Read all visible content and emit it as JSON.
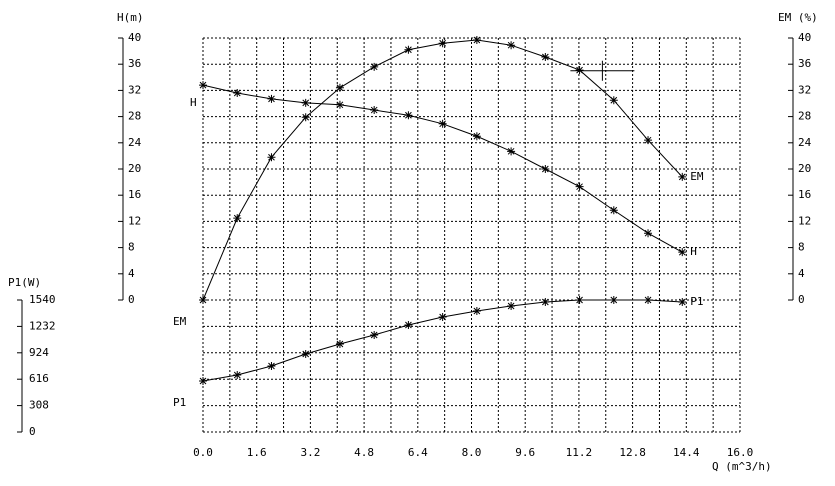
{
  "chart_data": {
    "type": "line",
    "xlabel": "Q (m^3/h)",
    "ylabel": "H(m)",
    "y2label": "EM (%)",
    "y3label": "P1(W)",
    "x": [
      0,
      1.02,
      2.04,
      3.06,
      4.08,
      5.1,
      6.12,
      7.14,
      8.16,
      9.18,
      10.2,
      11.22,
      12.24,
      13.26,
      14.28
    ],
    "xlim": [
      0,
      16
    ],
    "xticks": [
      {
        "value": 0,
        "label": "0.0"
      },
      1.6,
      3.2,
      4.8,
      6.4,
      {
        "value": 8,
        "label": "8.0"
      },
      9.6,
      11.2,
      12.8,
      14.4,
      {
        "value": 16,
        "label": "16.0"
      }
    ],
    "ylim": [
      0,
      40
    ],
    "yticks": [
      0,
      4,
      8,
      12,
      16,
      20,
      24,
      28,
      32,
      36,
      40
    ],
    "y2lim": [
      0,
      40
    ],
    "y2ticks": [
      0,
      4,
      8,
      12,
      16,
      20,
      24,
      28,
      32,
      36,
      40
    ],
    "y3lim": [
      0,
      1540
    ],
    "y3ticks": [
      0,
      308,
      616,
      924,
      1232,
      1540
    ],
    "grid": true,
    "series": [
      {
        "name": "H",
        "color": "#000000",
        "axis": "y",
        "values": [
          32.8,
          31.6,
          30.7,
          30.1,
          29.8,
          29.0,
          28.2,
          26.9,
          25.0,
          22.7,
          20.0,
          17.3,
          13.7,
          10.2,
          7.3
        ]
      },
      {
        "name": "EM",
        "color": "#000000",
        "axis": "y2",
        "values": [
          0,
          12.5,
          21.8,
          27.9,
          32.4,
          35.6,
          38.2,
          39.2,
          39.7,
          38.9,
          37.1,
          35.1,
          30.5,
          24.4,
          18.8
        ]
      },
      {
        "name": "P1",
        "color": "#000000",
        "axis": "y3",
        "values": [
          595,
          665,
          770,
          910,
          1027,
          1132,
          1248,
          1342,
          1412,
          1470,
          1517,
          1540,
          1540,
          1540,
          1517
        ]
      }
    ],
    "operating_point": {
      "x": 11.9,
      "y": 35.0
    }
  }
}
